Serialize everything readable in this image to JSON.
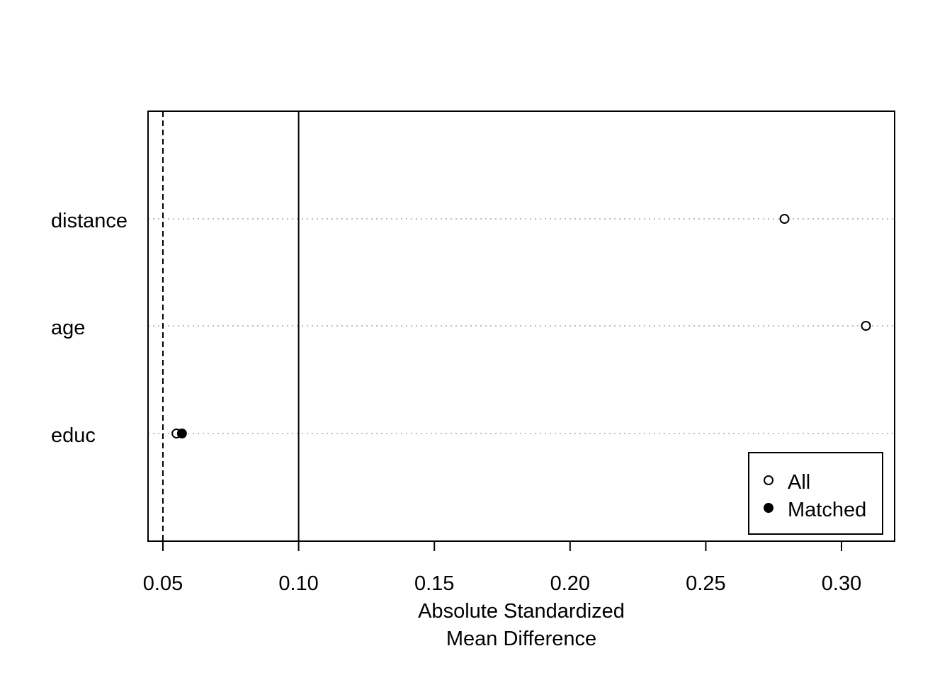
{
  "chart_data": {
    "type": "scatter",
    "title": "",
    "xlabel_lines": [
      "Absolute Standardized",
      "Mean Difference"
    ],
    "ylabel": "",
    "categories": [
      "distance",
      "age",
      "educ"
    ],
    "xlim": [
      0.045,
      0.32
    ],
    "x_ticks": [
      0.05,
      0.1,
      0.15,
      0.2,
      0.25,
      0.3
    ],
    "x_tick_labels": [
      "0.05",
      "0.10",
      "0.15",
      "0.20",
      "0.25",
      "0.30"
    ],
    "series": [
      {
        "name": "All",
        "marker": "open-circle",
        "values": [
          0.279,
          0.309,
          0.055
        ]
      },
      {
        "name": "Matched",
        "marker": "filled-circle",
        "values": [
          null,
          null,
          0.057
        ]
      }
    ],
    "reference_lines": [
      {
        "x": 0.05,
        "style": "dashed"
      },
      {
        "x": 0.1,
        "style": "solid"
      }
    ],
    "grid": "horizontal-dotted",
    "legend_position": "bottom-right"
  }
}
